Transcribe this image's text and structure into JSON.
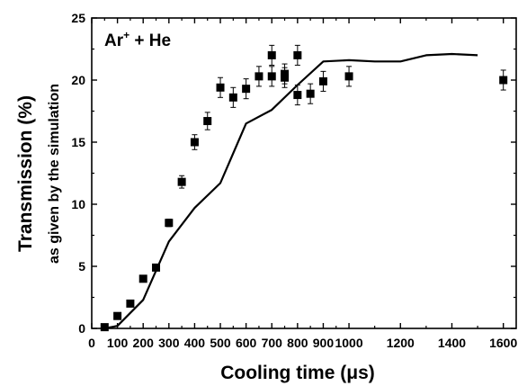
{
  "chart_data": {
    "type": "scatter",
    "title": "",
    "annotation": {
      "species": "Ar",
      "charge": "+",
      "rest": " + He"
    },
    "xlabel": "Cooling time (μs)",
    "ylabel": "Transmission (%)",
    "ylabel2": "as given by the simulation",
    "xlim": [
      0,
      1650
    ],
    "ylim": [
      0,
      25
    ],
    "xticks": [
      0,
      100,
      200,
      300,
      400,
      500,
      600,
      700,
      800,
      900,
      1000,
      1200,
      1400,
      1600
    ],
    "yticks": [
      0,
      5,
      10,
      15,
      20,
      25
    ],
    "grid": false,
    "legend": "none",
    "series": [
      {
        "kind": "scatter",
        "color": "#000000",
        "marker": "square",
        "points": [
          {
            "x": 50,
            "y": 0.1,
            "err": 0.0
          },
          {
            "x": 100,
            "y": 1.0,
            "err": 0.0
          },
          {
            "x": 150,
            "y": 2.0,
            "err": 0.0
          },
          {
            "x": 200,
            "y": 4.0,
            "err": 0.0
          },
          {
            "x": 250,
            "y": 4.9,
            "err": 0.0
          },
          {
            "x": 300,
            "y": 8.5,
            "err": 0.3
          },
          {
            "x": 350,
            "y": 11.8,
            "err": 0.5
          },
          {
            "x": 400,
            "y": 15.0,
            "err": 0.6
          },
          {
            "x": 450,
            "y": 16.7,
            "err": 0.7
          },
          {
            "x": 500,
            "y": 19.4,
            "err": 0.8
          },
          {
            "x": 550,
            "y": 18.6,
            "err": 0.8
          },
          {
            "x": 600,
            "y": 19.3,
            "err": 0.8
          },
          {
            "x": 650,
            "y": 20.3,
            "err": 0.8
          },
          {
            "x": 700,
            "y": 22.0,
            "err": 0.8
          },
          {
            "x": 700,
            "y": 20.3,
            "err": 0.8
          },
          {
            "x": 750,
            "y": 20.5,
            "err": 0.8
          },
          {
            "x": 750,
            "y": 20.2,
            "err": 0.8
          },
          {
            "x": 800,
            "y": 22.0,
            "err": 0.8
          },
          {
            "x": 800,
            "y": 18.8,
            "err": 0.8
          },
          {
            "x": 850,
            "y": 18.9,
            "err": 0.8
          },
          {
            "x": 900,
            "y": 19.9,
            "err": 0.8
          },
          {
            "x": 1000,
            "y": 20.3,
            "err": 0.8
          },
          {
            "x": 1600,
            "y": 20.0,
            "err": 0.8
          }
        ]
      },
      {
        "kind": "line",
        "color": "#000000",
        "points": [
          {
            "x": 50,
            "y": 0.0
          },
          {
            "x": 100,
            "y": 0.2
          },
          {
            "x": 200,
            "y": 2.3
          },
          {
            "x": 300,
            "y": 7.0
          },
          {
            "x": 400,
            "y": 9.7
          },
          {
            "x": 500,
            "y": 11.7
          },
          {
            "x": 600,
            "y": 16.5
          },
          {
            "x": 700,
            "y": 17.6
          },
          {
            "x": 800,
            "y": 19.6
          },
          {
            "x": 900,
            "y": 21.5
          },
          {
            "x": 1000,
            "y": 21.6
          },
          {
            "x": 1100,
            "y": 21.5
          },
          {
            "x": 1200,
            "y": 21.5
          },
          {
            "x": 1300,
            "y": 22.0
          },
          {
            "x": 1400,
            "y": 22.1
          },
          {
            "x": 1500,
            "y": 22.0
          }
        ]
      }
    ]
  }
}
